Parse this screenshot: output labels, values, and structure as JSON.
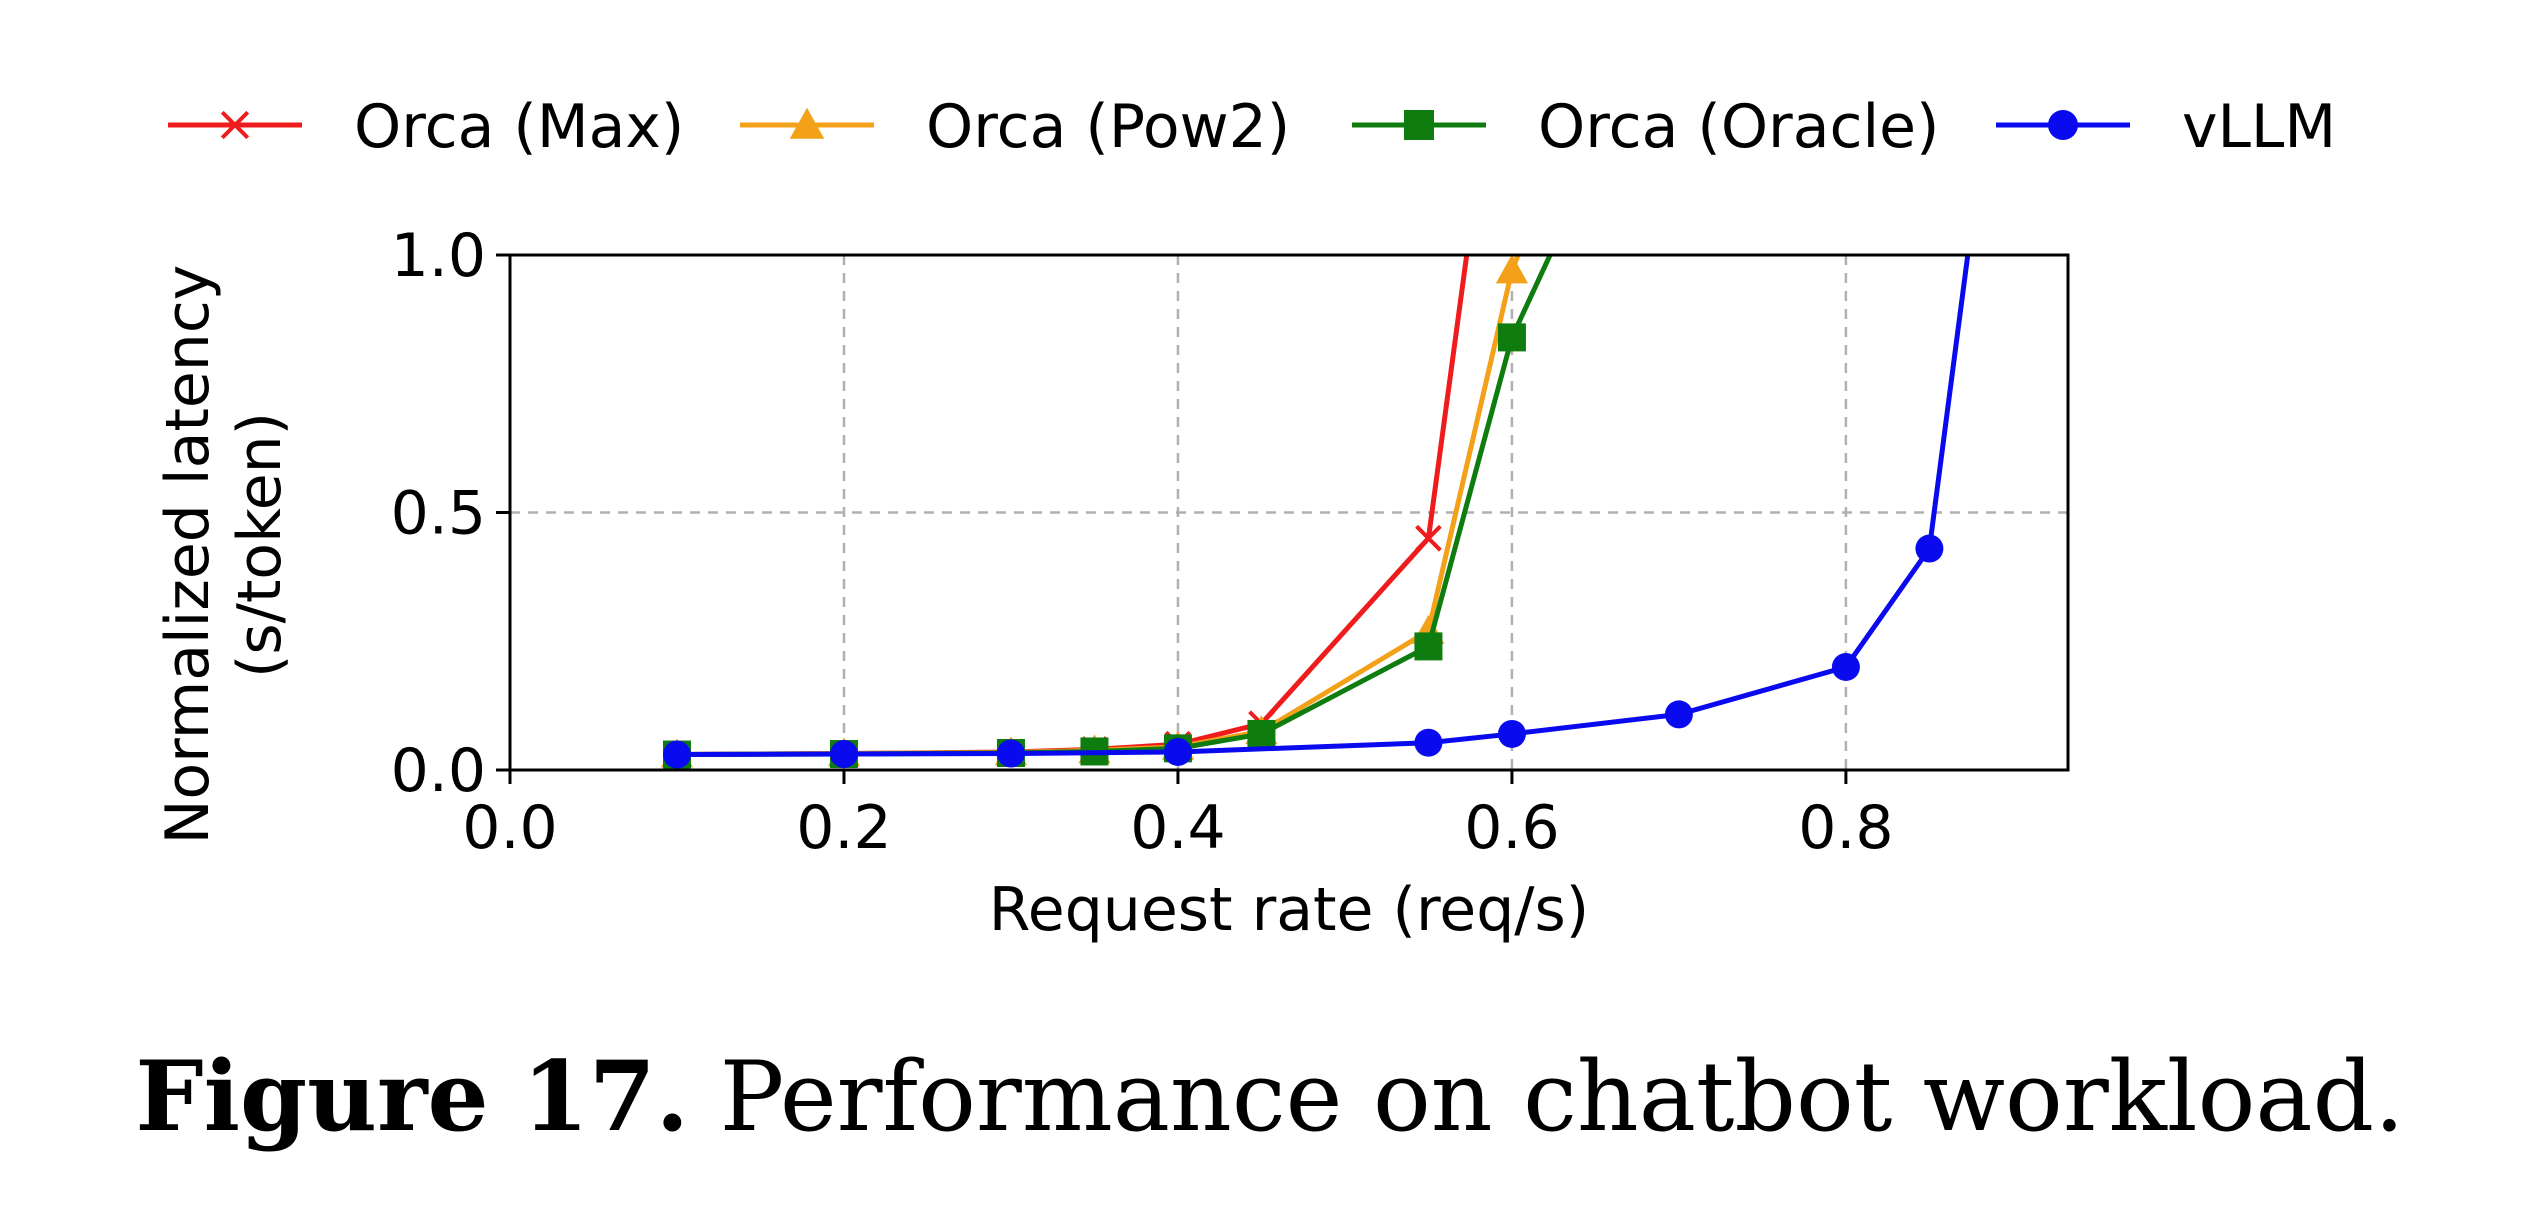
{
  "chart_data": {
    "type": "line",
    "xlabel": "Request rate (req/s)",
    "ylabel": "Normalized latency\n(s/token)",
    "ylabel_lines": [
      "Normalized latency",
      "(s/token)"
    ],
    "xlim": [
      0.0,
      0.933
    ],
    "ylim": [
      0.0,
      1.0
    ],
    "xticks": [
      "0.0",
      "0.2",
      "0.4",
      "0.6",
      "0.8"
    ],
    "xtick_values": [
      0.0,
      0.2,
      0.4,
      0.6,
      0.8
    ],
    "yticks": [
      "0.0",
      "0.5",
      "1.0"
    ],
    "ytick_values": [
      0.0,
      0.5,
      1.0
    ],
    "grid": true,
    "legend_position": "top",
    "series": [
      {
        "name": "Orca (Max)",
        "color": "#ee1c1c",
        "marker": "x",
        "points": [
          [
            0.1,
            0.03
          ],
          [
            0.2,
            0.032
          ],
          [
            0.3,
            0.035
          ],
          [
            0.35,
            0.04
          ],
          [
            0.4,
            0.05
          ],
          [
            0.45,
            0.09
          ],
          [
            0.55,
            0.45
          ],
          [
            0.575,
            1.05
          ]
        ]
      },
      {
        "name": "Orca (Pow2)",
        "color": "#f4a11a",
        "marker": "triangle",
        "points": [
          [
            0.1,
            0.03
          ],
          [
            0.2,
            0.032
          ],
          [
            0.3,
            0.034
          ],
          [
            0.35,
            0.038
          ],
          [
            0.4,
            0.045
          ],
          [
            0.45,
            0.075
          ],
          [
            0.55,
            0.27
          ],
          [
            0.6,
            0.97
          ],
          [
            0.61,
            1.05
          ]
        ]
      },
      {
        "name": "Orca (Oracle)",
        "color": "#0e7c0e",
        "marker": "square",
        "points": [
          [
            0.1,
            0.03
          ],
          [
            0.2,
            0.031
          ],
          [
            0.3,
            0.033
          ],
          [
            0.35,
            0.036
          ],
          [
            0.4,
            0.042
          ],
          [
            0.45,
            0.07
          ],
          [
            0.55,
            0.24
          ],
          [
            0.6,
            0.84
          ],
          [
            0.63,
            1.05
          ]
        ]
      },
      {
        "name": "vLLM",
        "color": "#0a0aee",
        "marker": "circle",
        "points": [
          [
            0.1,
            0.03
          ],
          [
            0.2,
            0.031
          ],
          [
            0.3,
            0.032
          ],
          [
            0.4,
            0.035
          ],
          [
            0.55,
            0.053
          ],
          [
            0.6,
            0.07
          ],
          [
            0.7,
            0.108
          ],
          [
            0.8,
            0.2
          ],
          [
            0.85,
            0.43
          ],
          [
            0.875,
            1.05
          ]
        ]
      }
    ]
  },
  "caption": {
    "label": "Figure 17.",
    "text": " Performance on chatbot workload."
  }
}
